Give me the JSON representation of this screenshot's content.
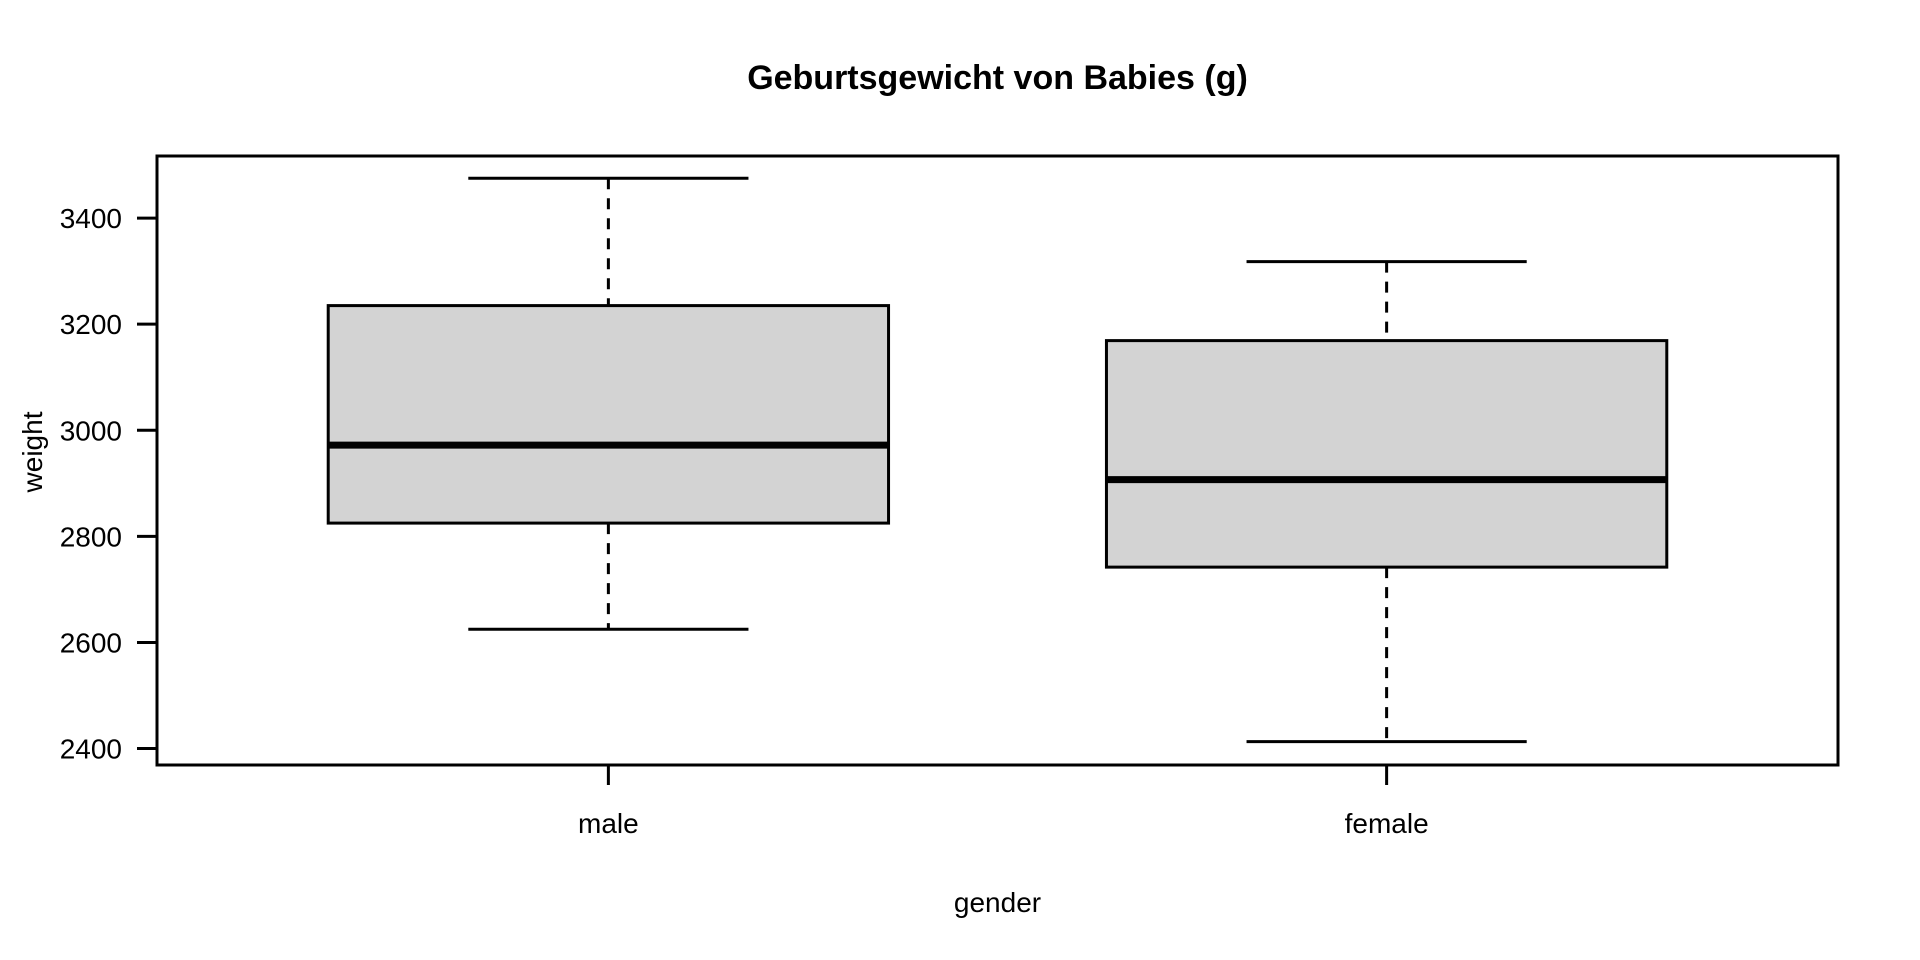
{
  "chart_data": {
    "type": "boxplot",
    "title": "Geburtsgewicht von Babies (g)",
    "xlabel": "gender",
    "ylabel": "weight",
    "categories": [
      "male",
      "female"
    ],
    "yticks": [
      2400,
      2600,
      2800,
      3000,
      3200,
      3400
    ],
    "ylim": [
      2369,
      3517
    ],
    "grid": false,
    "series": [
      {
        "name": "male",
        "lower_whisker": 2625,
        "q1": 2825,
        "median": 2972,
        "q3": 3235,
        "upper_whisker": 3475
      },
      {
        "name": "female",
        "lower_whisker": 2413,
        "q1": 2742,
        "median": 2907,
        "q3": 3169,
        "upper_whisker": 3318
      }
    ],
    "box_fill": "#d3d3d3",
    "line_color": "#000000",
    "background": "#ffffff"
  }
}
